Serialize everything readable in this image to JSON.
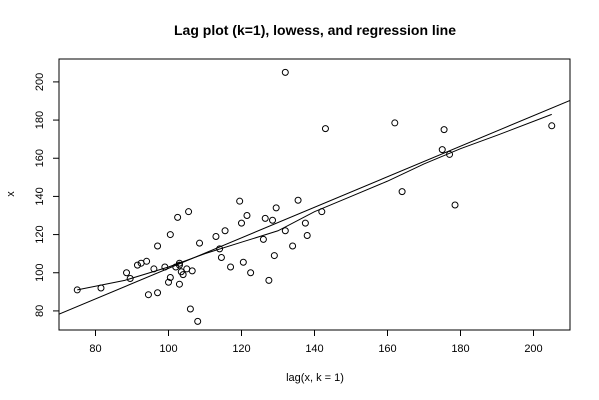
{
  "chart_data": {
    "type": "scatter",
    "title": "Lag plot (k=1), lowess, and regression line",
    "xlabel": "lag(x, k = 1)",
    "ylabel": "x",
    "xlim": [
      70,
      210
    ],
    "ylim": [
      70,
      212
    ],
    "xticks": [
      80,
      100,
      120,
      140,
      160,
      180,
      200
    ],
    "yticks": [
      80,
      100,
      120,
      140,
      160,
      180,
      200
    ],
    "series": [
      {
        "type": "scatter",
        "marker": "open-circle",
        "points": [
          [
            75,
            91
          ],
          [
            81.5,
            92
          ],
          [
            88.5,
            100
          ],
          [
            89.5,
            97
          ],
          [
            91.5,
            104
          ],
          [
            92.5,
            105
          ],
          [
            94,
            106
          ],
          [
            94.5,
            88.5
          ],
          [
            96,
            102
          ],
          [
            97,
            114
          ],
          [
            97,
            89.5
          ],
          [
            99,
            103
          ],
          [
            100,
            95
          ],
          [
            100.5,
            97.5
          ],
          [
            100.5,
            120
          ],
          [
            102,
            103
          ],
          [
            102.5,
            129
          ],
          [
            103,
            104
          ],
          [
            103,
            94
          ],
          [
            103,
            105
          ],
          [
            103.5,
            100.5
          ],
          [
            104,
            99
          ],
          [
            105,
            102
          ],
          [
            105.5,
            132
          ],
          [
            106,
            81
          ],
          [
            106.5,
            101
          ],
          [
            108,
            74.5
          ],
          [
            108.5,
            115.5
          ],
          [
            113,
            119
          ],
          [
            114,
            112.5
          ],
          [
            114.5,
            108
          ],
          [
            115.5,
            122
          ],
          [
            117,
            103
          ],
          [
            119.5,
            137.5
          ],
          [
            120,
            126
          ],
          [
            120.5,
            105.5
          ],
          [
            121.5,
            130
          ],
          [
            122.5,
            100
          ],
          [
            126,
            117.5
          ],
          [
            126.5,
            128.5
          ],
          [
            127.5,
            96
          ],
          [
            128.5,
            127.5
          ],
          [
            129,
            109
          ],
          [
            129.5,
            134
          ],
          [
            132,
            122
          ],
          [
            132,
            205
          ],
          [
            134,
            114
          ],
          [
            135.5,
            138
          ],
          [
            137.5,
            126
          ],
          [
            138,
            119.5
          ],
          [
            142,
            132
          ],
          [
            143,
            175.5
          ],
          [
            162,
            178.5
          ],
          [
            164,
            142.5
          ],
          [
            175,
            164.5
          ],
          [
            175.5,
            175
          ],
          [
            177,
            162
          ],
          [
            178.5,
            135.5
          ],
          [
            205,
            177
          ]
        ]
      },
      {
        "type": "line",
        "role": "lowess",
        "points": [
          [
            75,
            91
          ],
          [
            88,
            96
          ],
          [
            100,
            103
          ],
          [
            110,
            110
          ],
          [
            120,
            116
          ],
          [
            130,
            122
          ],
          [
            140,
            132
          ],
          [
            150,
            140
          ],
          [
            160,
            148
          ],
          [
            170,
            157
          ],
          [
            180,
            165
          ],
          [
            190,
            172
          ],
          [
            205,
            183
          ]
        ]
      },
      {
        "type": "line",
        "role": "regression",
        "intercept": 22.3,
        "slope": 0.8
      }
    ]
  }
}
